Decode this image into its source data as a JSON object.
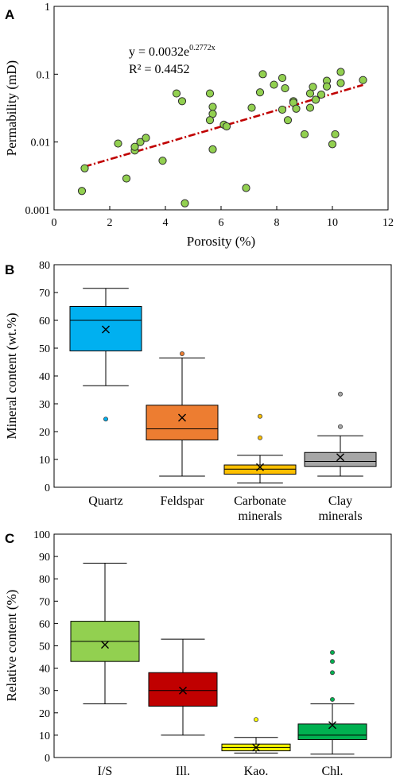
{
  "chart_data": [
    {
      "panel_label": "A",
      "type": "scatter",
      "xlabel": "Porosity (%)",
      "ylabel": "Permability (mD)",
      "xlim": [
        0,
        12
      ],
      "ylim": [
        0.001,
        1
      ],
      "yscale": "log",
      "xticks": [
        "0",
        "2",
        "4",
        "6",
        "8",
        "10",
        "12"
      ],
      "yticks": [
        "0.001",
        "0.01",
        "0.1",
        "1"
      ],
      "equation_lines": [
        "y = 0.0032e",
        "0.2772x",
        "R² = 0.4452"
      ],
      "point_color": "#92d050",
      "trend_color": "#c00000",
      "trendline": {
        "a": 0.0032,
        "b": 0.2772,
        "x_range": [
          1.1,
          11.1
        ]
      },
      "points": [
        [
          1.0,
          0.0019
        ],
        [
          1.1,
          0.0041
        ],
        [
          2.3,
          0.0095
        ],
        [
          2.6,
          0.0029
        ],
        [
          2.9,
          0.0075
        ],
        [
          2.9,
          0.0085
        ],
        [
          3.1,
          0.01
        ],
        [
          3.3,
          0.0115
        ],
        [
          3.9,
          0.0053
        ],
        [
          4.4,
          0.052
        ],
        [
          4.6,
          0.04
        ],
        [
          4.7,
          0.00125
        ],
        [
          5.6,
          0.052
        ],
        [
          5.7,
          0.033
        ],
        [
          5.7,
          0.026
        ],
        [
          5.6,
          0.021
        ],
        [
          5.7,
          0.0078
        ],
        [
          6.1,
          0.018
        ],
        [
          6.2,
          0.017
        ],
        [
          6.9,
          0.0021
        ],
        [
          7.1,
          0.032
        ],
        [
          7.4,
          0.054
        ],
        [
          7.5,
          0.1
        ],
        [
          7.9,
          0.07
        ],
        [
          8.2,
          0.088
        ],
        [
          8.2,
          0.03
        ],
        [
          8.3,
          0.062
        ],
        [
          8.4,
          0.021
        ],
        [
          8.6,
          0.04
        ],
        [
          8.6,
          0.038
        ],
        [
          8.7,
          0.031
        ],
        [
          9.0,
          0.013
        ],
        [
          9.2,
          0.052
        ],
        [
          9.3,
          0.065
        ],
        [
          9.2,
          0.032
        ],
        [
          9.4,
          0.042
        ],
        [
          9.6,
          0.05
        ],
        [
          9.8,
          0.08
        ],
        [
          9.8,
          0.066
        ],
        [
          10.0,
          0.0093
        ],
        [
          10.1,
          0.013
        ],
        [
          10.3,
          0.108
        ],
        [
          10.3,
          0.074
        ],
        [
          11.1,
          0.082
        ]
      ]
    },
    {
      "panel_label": "B",
      "type": "box",
      "ylabel": "Mineral content (wt.%)",
      "ylim": [
        0,
        80
      ],
      "yticks": [
        "0",
        "10",
        "20",
        "30",
        "40",
        "50",
        "60",
        "70",
        "80"
      ],
      "categories": [
        [
          "Quartz"
        ],
        [
          "Feldspar"
        ],
        [
          "Carbonate",
          "minerals"
        ],
        [
          "Clay",
          "minerals"
        ]
      ],
      "boxes": [
        {
          "min": 36.5,
          "q1": 49,
          "median": 60,
          "q3": 65,
          "max": 71.5,
          "mean": 56.7,
          "outliers": [
            24.5
          ],
          "color": "#00b0f0"
        },
        {
          "min": 4,
          "q1": 17,
          "median": 21,
          "q3": 29.5,
          "max": 46.5,
          "mean": 25,
          "outliers": [
            48
          ],
          "color": "#ed7d31"
        },
        {
          "min": 1.5,
          "q1": 4.7,
          "median": 6.5,
          "q3": 8,
          "max": 11.5,
          "mean": 7.2,
          "outliers": [
            17.8,
            25.5
          ],
          "color": "#ffc000"
        },
        {
          "min": 4,
          "q1": 7.5,
          "median": 9.3,
          "q3": 12.5,
          "max": 18.5,
          "mean": 10.8,
          "outliers": [
            21.8,
            33.5
          ],
          "color": "#a6a6a6"
        }
      ]
    },
    {
      "panel_label": "C",
      "type": "box",
      "ylabel": "Relative content (%)",
      "ylim": [
        0,
        100
      ],
      "yticks": [
        "0",
        "10",
        "20",
        "30",
        "40",
        "50",
        "60",
        "70",
        "80",
        "90",
        "100"
      ],
      "categories": [
        [
          "I/S"
        ],
        [
          "Ill."
        ],
        [
          "Kao."
        ],
        [
          "Chl."
        ]
      ],
      "boxes": [
        {
          "min": 24,
          "q1": 43,
          "median": 52,
          "q3": 61,
          "max": 87,
          "mean": 50.5,
          "outliers": [],
          "color": "#92d050"
        },
        {
          "min": 10,
          "q1": 23,
          "median": 30,
          "q3": 38,
          "max": 53,
          "mean": 30,
          "outliers": [],
          "color": "#c00000"
        },
        {
          "min": 2,
          "q1": 3,
          "median": 4.5,
          "q3": 6,
          "max": 9,
          "mean": 4.5,
          "outliers": [
            17
          ],
          "color": "#ffff00"
        },
        {
          "min": 1.5,
          "q1": 8,
          "median": 10,
          "q3": 15,
          "max": 24,
          "mean": 14.5,
          "outliers": [
            26,
            38,
            43,
            47
          ],
          "color": "#00b050"
        }
      ]
    }
  ]
}
